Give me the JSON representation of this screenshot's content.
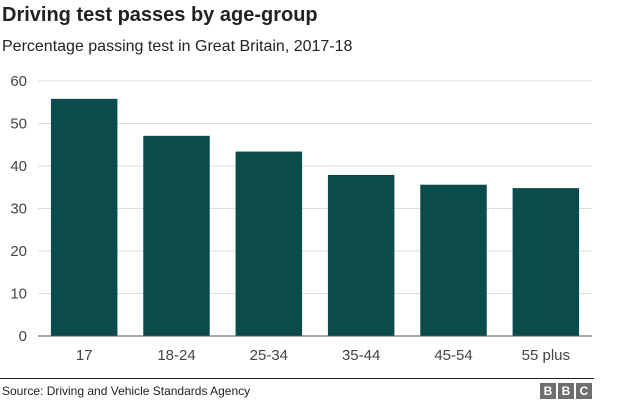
{
  "chart_data": {
    "type": "bar",
    "title": "Driving test passes by age-group",
    "subtitle": "Percentage passing test in Great Britain, 2017-18",
    "xlabel": "",
    "ylabel": "",
    "categories": [
      "17",
      "18-24",
      "25-34",
      "35-44",
      "45-54",
      "55 plus"
    ],
    "values": [
      55.8,
      47.1,
      43.4,
      37.9,
      35.6,
      34.8
    ],
    "ylim": [
      0,
      60
    ],
    "yticks": [
      "0",
      "10",
      "20",
      "30",
      "40",
      "50",
      "60"
    ],
    "grid": true,
    "bar_color": "#0c4b4b"
  },
  "footer": {
    "source": "Source: Driving and Vehicle Standards Agency",
    "logo": "BBC",
    "logo_letters": [
      "B",
      "B",
      "C"
    ]
  }
}
